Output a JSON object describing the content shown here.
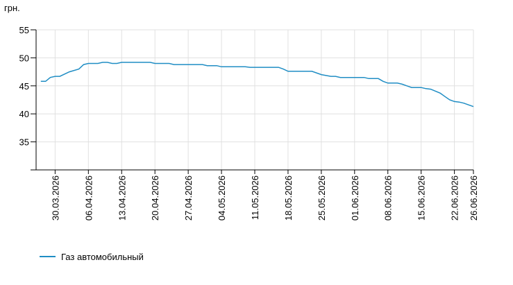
{
  "chart_data": {
    "type": "line",
    "y_unit_label": "грн.",
    "x": [
      "27.03.2026",
      "28.03.2026",
      "29.03.2026",
      "30.03.2026",
      "31.03.2026",
      "02.04.2026",
      "04.04.2026",
      "05.04.2026",
      "06.04.2026",
      "08.04.2026",
      "09.04.2026",
      "10.04.2026",
      "11.04.2026",
      "12.04.2026",
      "13.04.2026",
      "19.04.2026",
      "20.04.2026",
      "23.04.2026",
      "24.04.2026",
      "30.04.2026",
      "01.05.2026",
      "03.05.2026",
      "04.05.2026",
      "09.05.2026",
      "10.05.2026",
      "16.05.2026",
      "17.05.2026",
      "18.05.2026",
      "23.05.2026",
      "25.05.2026",
      "27.05.2026",
      "28.05.2026",
      "29.05.2026",
      "03.06.2026",
      "04.06.2026",
      "06.06.2026",
      "07.06.2026",
      "08.06.2026",
      "10.06.2026",
      "11.06.2026",
      "12.06.2026",
      "13.06.2026",
      "15.06.2026",
      "16.06.2026",
      "17.06.2026",
      "19.06.2026",
      "20.06.2026",
      "21.06.2026",
      "22.06.2026",
      "23.06.2026",
      "24.06.2026",
      "25.06.2026",
      "26.06.2026"
    ],
    "series": [
      {
        "name": "Газ автомобильный",
        "color": "#1f8dc4",
        "values": [
          45.8,
          45.8,
          46.5,
          46.7,
          46.7,
          47.5,
          48.0,
          48.8,
          49.0,
          49.0,
          49.2,
          49.2,
          49.0,
          49.0,
          49.2,
          49.2,
          49.0,
          49.0,
          48.8,
          48.8,
          48.6,
          48.6,
          48.4,
          48.4,
          48.3,
          48.3,
          48.0,
          47.6,
          47.6,
          47.0,
          46.7,
          46.7,
          46.5,
          46.5,
          46.3,
          46.3,
          45.8,
          45.5,
          45.5,
          45.3,
          45.0,
          44.7,
          44.7,
          44.5,
          44.4,
          43.7,
          43.1,
          42.5,
          42.2,
          42.1,
          41.9,
          41.6,
          41.3
        ]
      }
    ],
    "xlim": [
      "26.03.2026",
      "26.06.2026"
    ],
    "xticks": [
      "30.03.2026",
      "06.04.2026",
      "13.04.2026",
      "20.04.2026",
      "27.04.2026",
      "04.05.2026",
      "11.05.2026",
      "18.05.2026",
      "25.05.2026",
      "01.06.2026",
      "08.06.2026",
      "15.06.2026",
      "22.06.2026",
      "26.06.2026"
    ],
    "ylim": [
      30,
      55
    ],
    "yticks": [
      35,
      40,
      45,
      50,
      55
    ],
    "grid": true
  }
}
